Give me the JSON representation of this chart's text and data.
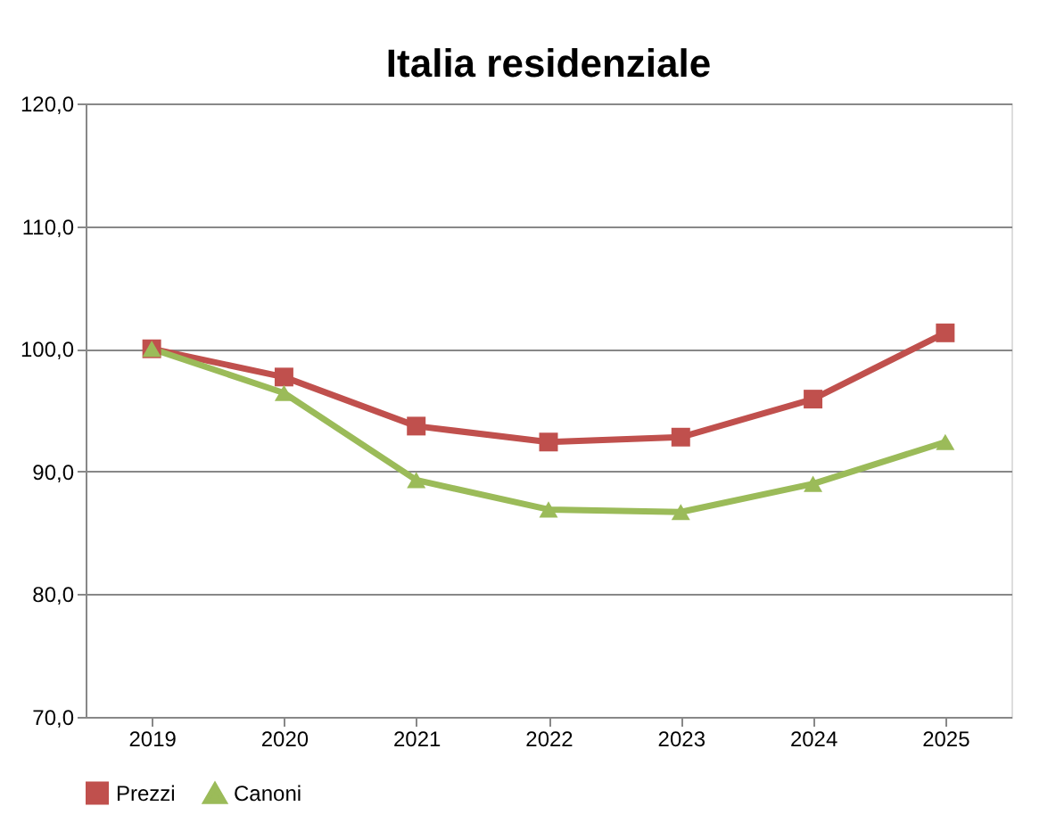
{
  "chart_data": {
    "type": "line",
    "title": "Italia residenziale",
    "categories": [
      "2019",
      "2020",
      "2021",
      "2022",
      "2023",
      "2024",
      "2025"
    ],
    "series": [
      {
        "name": "Prezzi",
        "color": "#c0504d",
        "marker": "square",
        "values": [
          100.0,
          97.7,
          93.7,
          92.4,
          92.8,
          95.9,
          101.3
        ]
      },
      {
        "name": "Canoni",
        "color": "#9bbb59",
        "marker": "triangle",
        "values": [
          100.0,
          96.4,
          89.3,
          86.9,
          86.7,
          89.0,
          92.4
        ]
      }
    ],
    "ylim": [
      70,
      120
    ],
    "yticks": [
      {
        "value": 70,
        "label": "70,0"
      },
      {
        "value": 80,
        "label": "80,0"
      },
      {
        "value": 90,
        "label": "90,0"
      },
      {
        "value": 100,
        "label": "100,0"
      },
      {
        "value": 110,
        "label": "110,0"
      },
      {
        "value": 120,
        "label": "120,0"
      }
    ],
    "grid": "y",
    "legend": "bottom",
    "line_style": "solid"
  }
}
